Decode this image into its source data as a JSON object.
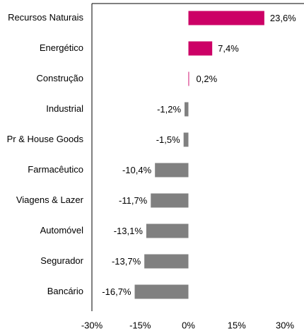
{
  "chart_data": {
    "type": "bar",
    "orientation": "horizontal",
    "categories": [
      "Recursos Naturais",
      "Energético",
      "Construção",
      "Industrial",
      "Pr & House Goods",
      "Farmacêutico",
      "Viagens & Lazer",
      "Automóvel",
      "Segurador",
      "Bancário"
    ],
    "values": [
      23.6,
      7.4,
      0.2,
      -1.2,
      -1.5,
      -10.4,
      -11.7,
      -13.1,
      -13.7,
      -16.7
    ],
    "value_labels": [
      "23,6%",
      "7,4%",
      "0,2%",
      "-1,2%",
      "-1,5%",
      "-10,4%",
      "-11,7%",
      "-13,1%",
      "-13,7%",
      "-16,7%"
    ],
    "positive_color": "#cc0066",
    "negative_color": "#808080",
    "xlim": [
      -30,
      30
    ],
    "xticks": [
      {
        "value": -30,
        "label": "-30%"
      },
      {
        "value": -15,
        "label": "-15%"
      },
      {
        "value": 0,
        "label": "0%"
      },
      {
        "value": 15,
        "label": "15%"
      },
      {
        "value": 30,
        "label": "30%"
      }
    ]
  }
}
